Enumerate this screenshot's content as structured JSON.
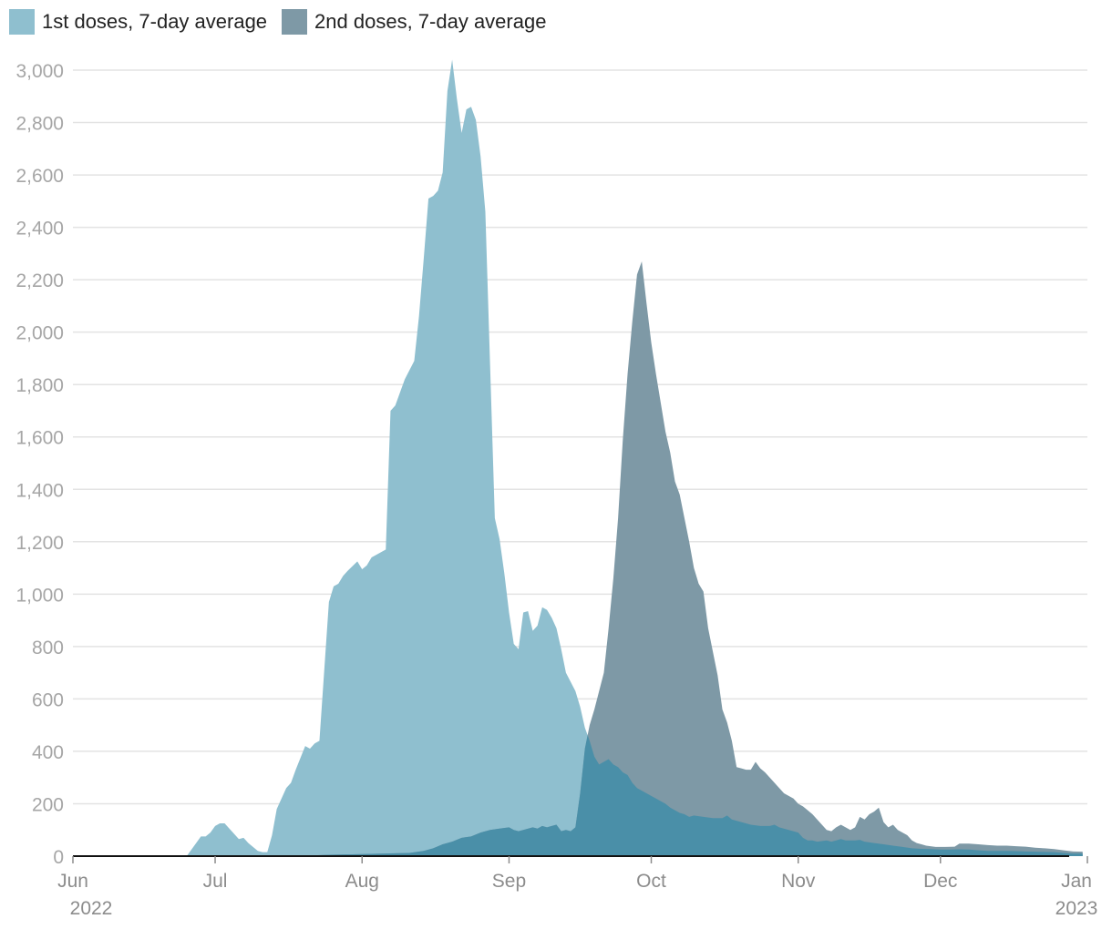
{
  "chart_data": {
    "type": "area",
    "title": "",
    "xlabel": "",
    "ylabel": "",
    "ylim": [
      0,
      3000
    ],
    "xlim": [
      "2022-06-01",
      "2023-01-01"
    ],
    "y_ticks": [
      "0",
      "200",
      "400",
      "600",
      "800",
      "1,000",
      "1,200",
      "1,400",
      "1,600",
      "1,800",
      "2,000",
      "2,200",
      "2,400",
      "2,600",
      "2,800",
      "3,000"
    ],
    "x_ticks": [
      {
        "label": "Jun",
        "sub": "2022",
        "date": "2022-06-01"
      },
      {
        "label": "Jul",
        "sub": "",
        "date": "2022-07-01"
      },
      {
        "label": "Aug",
        "sub": "",
        "date": "2022-08-01"
      },
      {
        "label": "Sep",
        "sub": "",
        "date": "2022-09-01"
      },
      {
        "label": "Oct",
        "sub": "",
        "date": "2022-10-01"
      },
      {
        "label": "Nov",
        "sub": "",
        "date": "2022-11-01"
      },
      {
        "label": "Dec",
        "sub": "",
        "date": "2022-12-01"
      },
      {
        "label": "Jan",
        "sub": "2023",
        "date": "2023-01-01"
      }
    ],
    "grid": true,
    "legend_position": "top-left",
    "series": [
      {
        "name": "1st doses, 7-day average",
        "color": "#8fbfcf",
        "points": [
          [
            "2022-06-01",
            0
          ],
          [
            "2022-06-25",
            0
          ],
          [
            "2022-06-27",
            50
          ],
          [
            "2022-06-28",
            75
          ],
          [
            "2022-06-29",
            75
          ],
          [
            "2022-06-30",
            90
          ],
          [
            "2022-07-01",
            115
          ],
          [
            "2022-07-02",
            125
          ],
          [
            "2022-07-03",
            125
          ],
          [
            "2022-07-05",
            85
          ],
          [
            "2022-07-06",
            65
          ],
          [
            "2022-07-07",
            70
          ],
          [
            "2022-07-08",
            50
          ],
          [
            "2022-07-10",
            20
          ],
          [
            "2022-07-11",
            15
          ],
          [
            "2022-07-12",
            15
          ],
          [
            "2022-07-13",
            80
          ],
          [
            "2022-07-14",
            180
          ],
          [
            "2022-07-16",
            260
          ],
          [
            "2022-07-17",
            280
          ],
          [
            "2022-07-18",
            330
          ],
          [
            "2022-07-20",
            420
          ],
          [
            "2022-07-21",
            410
          ],
          [
            "2022-07-22",
            430
          ],
          [
            "2022-07-23",
            440
          ],
          [
            "2022-07-25",
            970
          ],
          [
            "2022-07-26",
            1030
          ],
          [
            "2022-07-27",
            1040
          ],
          [
            "2022-07-28",
            1070
          ],
          [
            "2022-07-29",
            1090
          ],
          [
            "2022-07-31",
            1125
          ],
          [
            "2022-08-01",
            1095
          ],
          [
            "2022-08-02",
            1110
          ],
          [
            "2022-08-03",
            1140
          ],
          [
            "2022-08-04",
            1150
          ],
          [
            "2022-08-05",
            1160
          ],
          [
            "2022-08-06",
            1170
          ],
          [
            "2022-08-07",
            1700
          ],
          [
            "2022-08-08",
            1720
          ],
          [
            "2022-08-09",
            1770
          ],
          [
            "2022-08-10",
            1820
          ],
          [
            "2022-08-12",
            1890
          ],
          [
            "2022-08-13",
            2060
          ],
          [
            "2022-08-14",
            2280
          ],
          [
            "2022-08-15",
            2510
          ],
          [
            "2022-08-16",
            2520
          ],
          [
            "2022-08-17",
            2540
          ],
          [
            "2022-08-18",
            2610
          ],
          [
            "2022-08-19",
            2920
          ],
          [
            "2022-08-20",
            3040
          ],
          [
            "2022-08-21",
            2890
          ],
          [
            "2022-08-22",
            2760
          ],
          [
            "2022-08-23",
            2850
          ],
          [
            "2022-08-24",
            2860
          ],
          [
            "2022-08-25",
            2810
          ],
          [
            "2022-08-26",
            2670
          ],
          [
            "2022-08-27",
            2460
          ],
          [
            "2022-08-29",
            1290
          ],
          [
            "2022-08-30",
            1210
          ],
          [
            "2022-08-31",
            1080
          ],
          [
            "2022-09-01",
            930
          ],
          [
            "2022-09-02",
            810
          ],
          [
            "2022-09-03",
            790
          ],
          [
            "2022-09-04",
            930
          ],
          [
            "2022-09-05",
            935
          ],
          [
            "2022-09-06",
            860
          ],
          [
            "2022-09-07",
            880
          ],
          [
            "2022-09-08",
            950
          ],
          [
            "2022-09-09",
            940
          ],
          [
            "2022-09-10",
            910
          ],
          [
            "2022-09-11",
            870
          ],
          [
            "2022-09-12",
            790
          ],
          [
            "2022-09-13",
            700
          ],
          [
            "2022-09-15",
            630
          ],
          [
            "2022-09-16",
            570
          ],
          [
            "2022-09-17",
            490
          ],
          [
            "2022-09-18",
            440
          ],
          [
            "2022-09-19",
            380
          ],
          [
            "2022-09-20",
            350
          ],
          [
            "2022-09-22",
            370
          ],
          [
            "2022-09-23",
            350
          ],
          [
            "2022-09-24",
            340
          ],
          [
            "2022-09-25",
            320
          ],
          [
            "2022-09-26",
            310
          ],
          [
            "2022-09-27",
            280
          ],
          [
            "2022-09-28",
            260
          ],
          [
            "2022-09-29",
            250
          ],
          [
            "2022-09-30",
            240
          ],
          [
            "2022-10-01",
            230
          ],
          [
            "2022-10-02",
            220
          ],
          [
            "2022-10-04",
            200
          ],
          [
            "2022-10-05",
            185
          ],
          [
            "2022-10-06",
            175
          ],
          [
            "2022-10-07",
            165
          ],
          [
            "2022-10-08",
            160
          ],
          [
            "2022-10-09",
            150
          ],
          [
            "2022-10-10",
            155
          ],
          [
            "2022-10-12",
            150
          ],
          [
            "2022-10-14",
            145
          ],
          [
            "2022-10-16",
            145
          ],
          [
            "2022-10-17",
            155
          ],
          [
            "2022-10-18",
            140
          ],
          [
            "2022-10-20",
            130
          ],
          [
            "2022-10-22",
            120
          ],
          [
            "2022-10-24",
            115
          ],
          [
            "2022-10-26",
            115
          ],
          [
            "2022-10-27",
            120
          ],
          [
            "2022-10-28",
            110
          ],
          [
            "2022-10-30",
            100
          ],
          [
            "2022-11-01",
            90
          ],
          [
            "2022-11-02",
            70
          ],
          [
            "2022-11-03",
            60
          ],
          [
            "2022-11-04",
            60
          ],
          [
            "2022-11-05",
            55
          ],
          [
            "2022-11-07",
            60
          ],
          [
            "2022-11-08",
            55
          ],
          [
            "2022-11-09",
            60
          ],
          [
            "2022-11-10",
            65
          ],
          [
            "2022-11-11",
            60
          ],
          [
            "2022-11-13",
            60
          ],
          [
            "2022-11-14",
            62
          ],
          [
            "2022-11-15",
            55
          ],
          [
            "2022-11-17",
            50
          ],
          [
            "2022-11-19",
            45
          ],
          [
            "2022-11-21",
            40
          ],
          [
            "2022-11-23",
            35
          ],
          [
            "2022-11-25",
            30
          ],
          [
            "2022-11-27",
            28
          ],
          [
            "2022-11-29",
            27
          ],
          [
            "2022-12-01",
            25
          ],
          [
            "2022-12-03",
            25
          ],
          [
            "2022-12-05",
            26
          ],
          [
            "2022-12-07",
            25
          ],
          [
            "2022-12-09",
            22
          ],
          [
            "2022-12-11",
            20
          ],
          [
            "2022-12-13",
            20
          ],
          [
            "2022-12-15",
            20
          ],
          [
            "2022-12-17",
            19
          ],
          [
            "2022-12-19",
            18
          ],
          [
            "2022-12-21",
            17
          ],
          [
            "2022-12-23",
            16
          ],
          [
            "2022-12-25",
            15
          ],
          [
            "2022-12-27",
            12
          ],
          [
            "2022-12-29",
            10
          ],
          [
            "2022-12-30",
            10
          ],
          [
            "2022-12-31",
            10
          ]
        ]
      },
      {
        "name": "2nd doses, 7-day average",
        "color": "#7e99a6",
        "points": [
          [
            "2022-06-01",
            0
          ],
          [
            "2022-07-18",
            0
          ],
          [
            "2022-07-25",
            5
          ],
          [
            "2022-08-01",
            8
          ],
          [
            "2022-08-06",
            10
          ],
          [
            "2022-08-11",
            12
          ],
          [
            "2022-08-14",
            20
          ],
          [
            "2022-08-16",
            30
          ],
          [
            "2022-08-18",
            45
          ],
          [
            "2022-08-20",
            55
          ],
          [
            "2022-08-22",
            70
          ],
          [
            "2022-08-24",
            75
          ],
          [
            "2022-08-26",
            90
          ],
          [
            "2022-08-28",
            100
          ],
          [
            "2022-08-30",
            105
          ],
          [
            "2022-09-01",
            110
          ],
          [
            "2022-09-02",
            100
          ],
          [
            "2022-09-03",
            95
          ],
          [
            "2022-09-04",
            100
          ],
          [
            "2022-09-06",
            110
          ],
          [
            "2022-09-07",
            105
          ],
          [
            "2022-09-08",
            115
          ],
          [
            "2022-09-09",
            110
          ],
          [
            "2022-09-10",
            115
          ],
          [
            "2022-09-11",
            120
          ],
          [
            "2022-09-12",
            95
          ],
          [
            "2022-09-13",
            100
          ],
          [
            "2022-09-14",
            95
          ],
          [
            "2022-09-15",
            110
          ],
          [
            "2022-09-16",
            240
          ],
          [
            "2022-09-17",
            410
          ],
          [
            "2022-09-18",
            500
          ],
          [
            "2022-09-19",
            560
          ],
          [
            "2022-09-20",
            630
          ],
          [
            "2022-09-21",
            700
          ],
          [
            "2022-09-22",
            870
          ],
          [
            "2022-09-23",
            1060
          ],
          [
            "2022-09-24",
            1290
          ],
          [
            "2022-09-25",
            1590
          ],
          [
            "2022-09-26",
            1840
          ],
          [
            "2022-09-27",
            2040
          ],
          [
            "2022-09-28",
            2220
          ],
          [
            "2022-09-29",
            2270
          ],
          [
            "2022-09-30",
            2110
          ],
          [
            "2022-10-01",
            1960
          ],
          [
            "2022-10-02",
            1840
          ],
          [
            "2022-10-03",
            1730
          ],
          [
            "2022-10-04",
            1620
          ],
          [
            "2022-10-05",
            1540
          ],
          [
            "2022-10-06",
            1430
          ],
          [
            "2022-10-07",
            1380
          ],
          [
            "2022-10-08",
            1290
          ],
          [
            "2022-10-09",
            1200
          ],
          [
            "2022-10-10",
            1100
          ],
          [
            "2022-10-11",
            1040
          ],
          [
            "2022-10-12",
            1010
          ],
          [
            "2022-10-13",
            870
          ],
          [
            "2022-10-14",
            780
          ],
          [
            "2022-10-15",
            690
          ],
          [
            "2022-10-16",
            560
          ],
          [
            "2022-10-17",
            510
          ],
          [
            "2022-10-18",
            440
          ],
          [
            "2022-10-19",
            340
          ],
          [
            "2022-10-20",
            335
          ],
          [
            "2022-10-21",
            330
          ],
          [
            "2022-10-22",
            330
          ],
          [
            "2022-10-23",
            360
          ],
          [
            "2022-10-24",
            335
          ],
          [
            "2022-10-25",
            320
          ],
          [
            "2022-10-26",
            300
          ],
          [
            "2022-10-27",
            280
          ],
          [
            "2022-10-28",
            260
          ],
          [
            "2022-10-29",
            240
          ],
          [
            "2022-10-30",
            230
          ],
          [
            "2022-10-31",
            220
          ],
          [
            "2022-11-01",
            200
          ],
          [
            "2022-11-02",
            190
          ],
          [
            "2022-11-03",
            175
          ],
          [
            "2022-11-04",
            160
          ],
          [
            "2022-11-05",
            140
          ],
          [
            "2022-11-06",
            120
          ],
          [
            "2022-11-07",
            100
          ],
          [
            "2022-11-08",
            95
          ],
          [
            "2022-11-09",
            110
          ],
          [
            "2022-11-10",
            120
          ],
          [
            "2022-11-11",
            110
          ],
          [
            "2022-11-12",
            100
          ],
          [
            "2022-11-13",
            110
          ],
          [
            "2022-11-14",
            150
          ],
          [
            "2022-11-15",
            140
          ],
          [
            "2022-11-16",
            160
          ],
          [
            "2022-11-17",
            170
          ],
          [
            "2022-11-18",
            185
          ],
          [
            "2022-11-19",
            130
          ],
          [
            "2022-11-20",
            110
          ],
          [
            "2022-11-21",
            120
          ],
          [
            "2022-11-22",
            100
          ],
          [
            "2022-11-23",
            90
          ],
          [
            "2022-11-24",
            80
          ],
          [
            "2022-11-25",
            60
          ],
          [
            "2022-11-26",
            50
          ],
          [
            "2022-11-27",
            45
          ],
          [
            "2022-11-28",
            40
          ],
          [
            "2022-11-30",
            35
          ],
          [
            "2022-12-02",
            35
          ],
          [
            "2022-12-04",
            36
          ],
          [
            "2022-12-05",
            48
          ],
          [
            "2022-12-07",
            48
          ],
          [
            "2022-12-09",
            45
          ],
          [
            "2022-12-11",
            42
          ],
          [
            "2022-12-13",
            40
          ],
          [
            "2022-12-15",
            40
          ],
          [
            "2022-12-17",
            38
          ],
          [
            "2022-12-19",
            36
          ],
          [
            "2022-12-21",
            32
          ],
          [
            "2022-12-23",
            30
          ],
          [
            "2022-12-25",
            27
          ],
          [
            "2022-12-27",
            22
          ],
          [
            "2022-12-29",
            18
          ],
          [
            "2022-12-31",
            17
          ]
        ]
      }
    ],
    "overlap_color": "#4a8fa8"
  }
}
